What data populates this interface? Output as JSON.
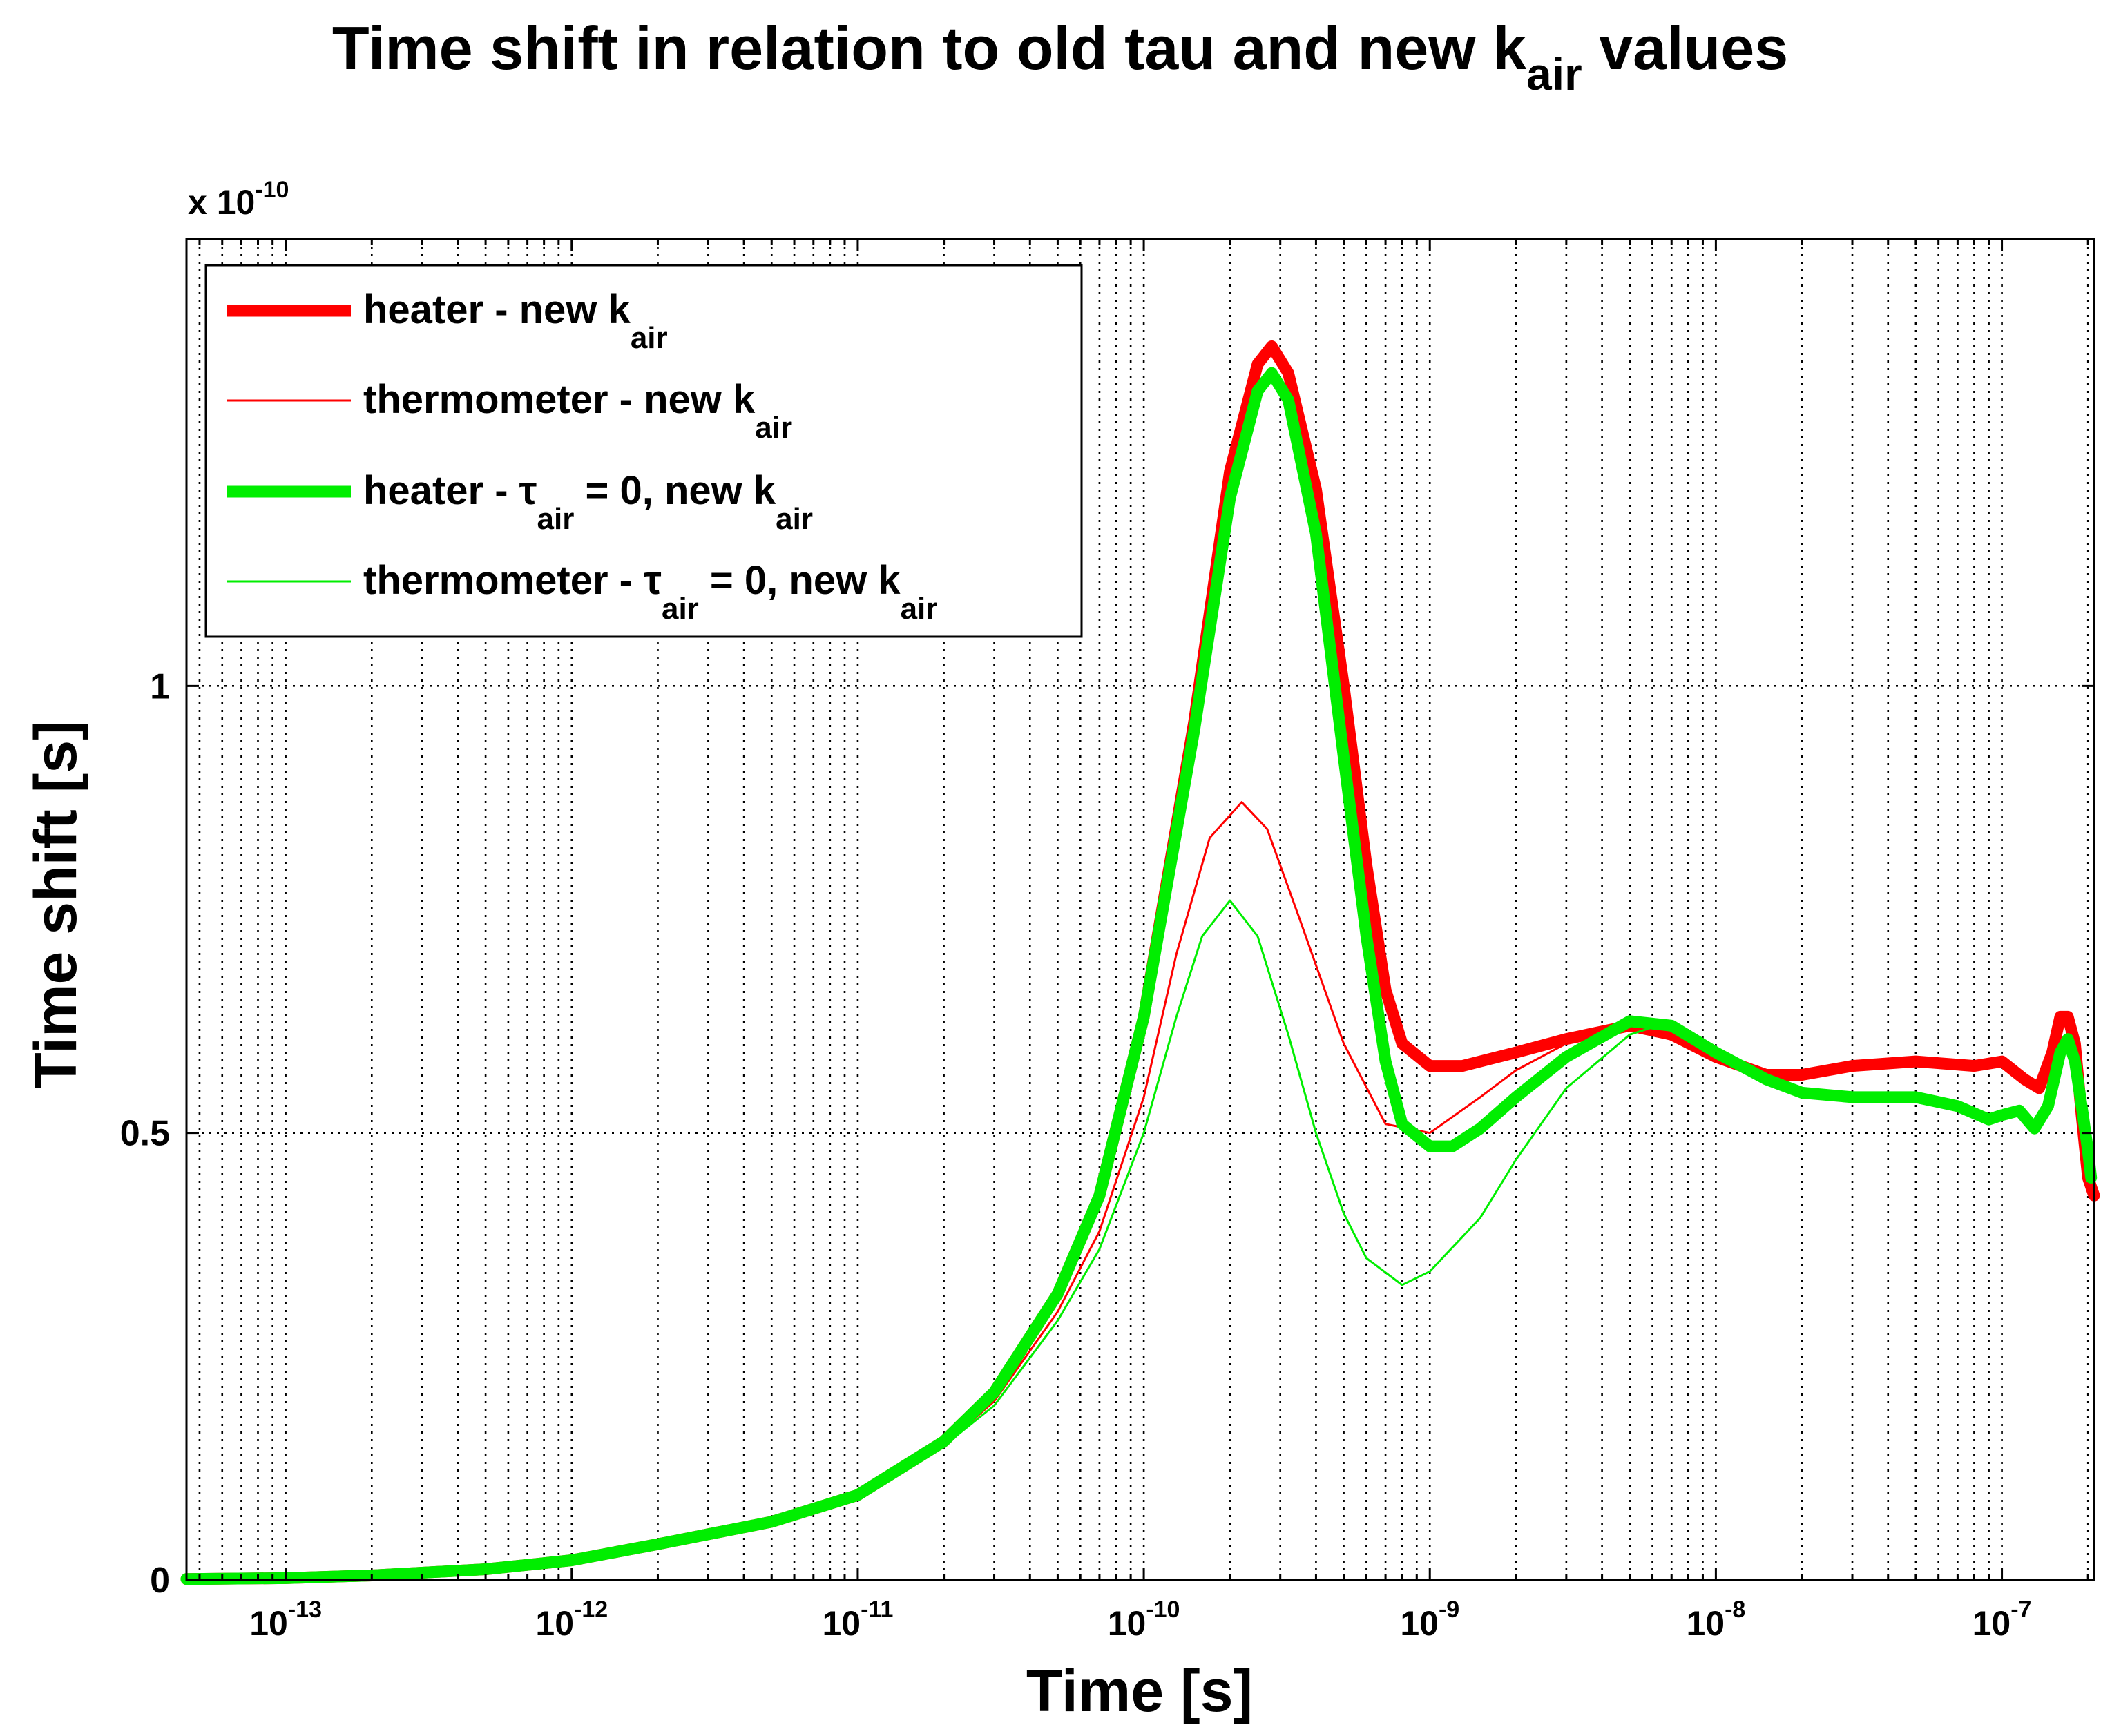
{
  "chart_data": {
    "type": "line",
    "title": "Time shift in relation to old tau and new k_air values",
    "title_parts": {
      "main": "Time shift in relation to old tau and new k",
      "sub": "air",
      "tail": " values"
    },
    "xlabel": "Time [s]",
    "ylabel": "Time shift [s]",
    "x_scale": "log",
    "xlim": [
      4.5e-14,
      2.1e-07
    ],
    "ylim": [
      0,
      1.5e-10
    ],
    "y_multiplier": {
      "prefix": "x 10",
      "exponent": "-10"
    },
    "x_ticks": [
      {
        "value": 1e-13,
        "base": "10",
        "exp": "-13"
      },
      {
        "value": 1e-12,
        "base": "10",
        "exp": "-12"
      },
      {
        "value": 1e-11,
        "base": "10",
        "exp": "-11"
      },
      {
        "value": 1e-10,
        "base": "10",
        "exp": "-10"
      },
      {
        "value": 1e-09,
        "base": "10",
        "exp": "-9"
      },
      {
        "value": 1e-08,
        "base": "10",
        "exp": "-8"
      },
      {
        "value": 1e-07,
        "base": "10",
        "exp": "-7"
      }
    ],
    "y_ticks": [
      {
        "value": 0,
        "label": "0"
      },
      {
        "value": 5e-11,
        "label": "0.5"
      },
      {
        "value": 1e-10,
        "label": "1"
      }
    ],
    "grid": true,
    "legend_position": "top-left",
    "legend": [
      {
        "series": "heater-new-kair",
        "segments": [
          [
            "heater - new k",
            "n"
          ],
          [
            "air",
            "sub"
          ]
        ]
      },
      {
        "series": "thermometer-new-kair",
        "segments": [
          [
            "thermometer - new k",
            "n"
          ],
          [
            "air",
            "sub"
          ]
        ]
      },
      {
        "series": "heater-tau0-new-kair",
        "segments": [
          [
            "heater - ",
            "n"
          ],
          [
            "τ",
            "n"
          ],
          [
            "air",
            "sub"
          ],
          [
            " = 0, new k",
            "n"
          ],
          [
            "air",
            "sub"
          ]
        ]
      },
      {
        "series": "thermometer-tau0-new-kair",
        "segments": [
          [
            "thermometer - ",
            "n"
          ],
          [
            "τ",
            "n"
          ],
          [
            "air",
            "sub"
          ],
          [
            " = 0, new k",
            "n"
          ],
          [
            "air",
            "sub"
          ]
        ]
      }
    ],
    "series": [
      {
        "name": "heater - new k_air",
        "id": "heater-new-kair",
        "color": "#ff0000",
        "weight": "thick",
        "x": [
          4.5e-14,
          1e-13,
          2e-13,
          5e-13,
          1e-12,
          2e-12,
          5e-12,
          1e-11,
          2e-11,
          3e-11,
          5e-11,
          7e-11,
          1e-10,
          1.5e-10,
          2e-10,
          2.5e-10,
          2.8e-10,
          3.2e-10,
          4e-10,
          5e-10,
          6e-10,
          7e-10,
          8e-10,
          1e-09,
          1.3e-09,
          2e-09,
          3e-09,
          5e-09,
          7e-09,
          1e-08,
          1.5e-08,
          2e-08,
          3e-08,
          5e-08,
          8e-08,
          1e-07,
          1.2e-07,
          1.35e-07,
          1.5e-07,
          1.6e-07,
          1.7e-07,
          1.8e-07,
          1.9e-07,
          2e-07,
          2.1e-07
        ],
        "y": [
          1e-13,
          2e-13,
          5e-13,
          1.2e-12,
          2.2e-12,
          4e-12,
          6.5e-12,
          9.5e-12,
          1.55e-11,
          2.1e-11,
          3.2e-11,
          4.3e-11,
          6.3e-11,
          9.6e-11,
          1.24e-10,
          1.36e-10,
          1.38e-10,
          1.35e-10,
          1.22e-10,
          1e-10,
          8e-11,
          6.6e-11,
          6e-11,
          5.75e-11,
          5.75e-11,
          5.9e-11,
          6.05e-11,
          6.2e-11,
          6.1e-11,
          5.85e-11,
          5.65e-11,
          5.65e-11,
          5.75e-11,
          5.8e-11,
          5.75e-11,
          5.8e-11,
          5.6e-11,
          5.5e-11,
          5.9e-11,
          6.3e-11,
          6.3e-11,
          6e-11,
          5.2e-11,
          4.5e-11,
          4.3e-11
        ]
      },
      {
        "name": "thermometer - new k_air",
        "id": "thermometer-new-kair",
        "color": "#ff0000",
        "weight": "thin",
        "x": [
          4.5e-14,
          1e-13,
          2e-13,
          5e-13,
          1e-12,
          2e-12,
          5e-12,
          1e-11,
          2e-11,
          3e-11,
          5e-11,
          7e-11,
          1e-10,
          1.3e-10,
          1.7e-10,
          2.2e-10,
          2.7e-10,
          3.5e-10,
          5e-10,
          7e-10,
          1e-09,
          1.5e-09,
          2e-09,
          3e-09,
          4e-09,
          5e-09,
          6e-09
        ],
        "y": [
          1e-13,
          2e-13,
          5e-13,
          1.2e-12,
          2.2e-12,
          4e-12,
          6.5e-12,
          9.5e-12,
          1.5e-11,
          2e-11,
          3e-11,
          3.9e-11,
          5.4e-11,
          7e-11,
          8.3e-11,
          8.7e-11,
          8.4e-11,
          7.4e-11,
          6e-11,
          5.1e-11,
          5e-11,
          5.4e-11,
          5.7e-11,
          6e-11,
          6.15e-11,
          6.2e-11,
          6.2e-11
        ]
      },
      {
        "name": "heater - tau_air = 0, new k_air",
        "id": "heater-tau0-new-kair",
        "color": "#00ee00",
        "weight": "thick",
        "x": [
          4.5e-14,
          1e-13,
          2e-13,
          5e-13,
          1e-12,
          2e-12,
          5e-12,
          1e-11,
          2e-11,
          3e-11,
          5e-11,
          7e-11,
          1e-10,
          1.5e-10,
          2e-10,
          2.5e-10,
          2.8e-10,
          3.2e-10,
          4e-10,
          5e-10,
          6e-10,
          7e-10,
          8e-10,
          1e-09,
          1.2e-09,
          1.5e-09,
          2e-09,
          3e-09,
          5e-09,
          7e-09,
          1e-08,
          1.5e-08,
          2e-08,
          3e-08,
          5e-08,
          7e-08,
          9e-08,
          1e-07,
          1.15e-07,
          1.3e-07,
          1.45e-07,
          1.6e-07,
          1.7e-07,
          1.8e-07,
          1.9e-07,
          2e-07,
          2.05e-07
        ],
        "y": [
          1e-13,
          2e-13,
          5e-13,
          1.2e-12,
          2.2e-12,
          4e-12,
          6.5e-12,
          9.5e-12,
          1.55e-11,
          2.1e-11,
          3.2e-11,
          4.3e-11,
          6.3e-11,
          9.5e-11,
          1.21e-10,
          1.33e-10,
          1.35e-10,
          1.32e-10,
          1.17e-10,
          9.2e-11,
          7.2e-11,
          5.8e-11,
          5.1e-11,
          4.85e-11,
          4.85e-11,
          5.05e-11,
          5.4e-11,
          5.85e-11,
          6.25e-11,
          6.2e-11,
          5.9e-11,
          5.6e-11,
          5.45e-11,
          5.4e-11,
          5.4e-11,
          5.3e-11,
          5.15e-11,
          5.2e-11,
          5.25e-11,
          5.05e-11,
          5.3e-11,
          5.9e-11,
          6.05e-11,
          5.8e-11,
          5.3e-11,
          4.8e-11,
          4.5e-11
        ]
      },
      {
        "name": "thermometer - tau_air = 0, new k_air",
        "id": "thermometer-tau0-new-kair",
        "color": "#00ee00",
        "weight": "thin",
        "x": [
          4.5e-14,
          1e-13,
          2e-13,
          5e-13,
          1e-12,
          2e-12,
          5e-12,
          1e-11,
          2e-11,
          3e-11,
          5e-11,
          7e-11,
          1e-10,
          1.3e-10,
          1.6e-10,
          2e-10,
          2.5e-10,
          3.2e-10,
          4e-10,
          5e-10,
          6e-10,
          8e-10,
          1e-09,
          1.5e-09,
          2e-09,
          3e-09,
          5e-09,
          7e-09
        ],
        "y": [
          1e-13,
          2e-13,
          5e-13,
          1.2e-12,
          2.2e-12,
          4e-12,
          6.5e-12,
          9.5e-12,
          1.5e-11,
          1.95e-11,
          2.9e-11,
          3.7e-11,
          5e-11,
          6.3e-11,
          7.2e-11,
          7.6e-11,
          7.2e-11,
          6.1e-11,
          5e-11,
          4.1e-11,
          3.6e-11,
          3.3e-11,
          3.45e-11,
          4.05e-11,
          4.7e-11,
          5.5e-11,
          6.1e-11,
          6.25e-11
        ]
      }
    ]
  }
}
